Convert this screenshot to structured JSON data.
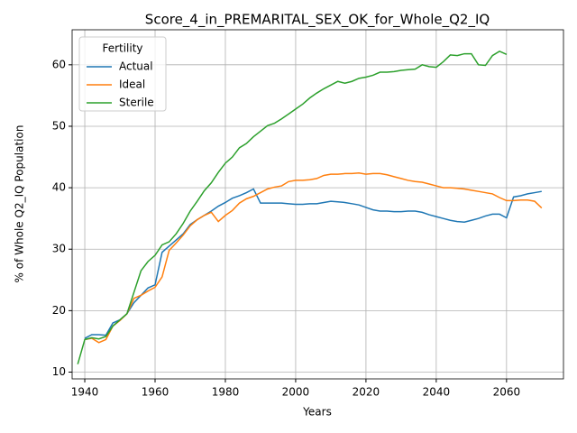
{
  "chart_data": {
    "type": "line",
    "title": "Score_4_in_PREMARITAL_SEX_OK_for_Whole_Q2_IQ",
    "xlabel": "Years",
    "ylabel": "% of Whole Q2_IQ Population",
    "x": [
      1938,
      1940,
      1942,
      1944,
      1946,
      1948,
      1950,
      1952,
      1954,
      1956,
      1958,
      1960,
      1962,
      1964,
      1966,
      1968,
      1970,
      1972,
      1974,
      1976,
      1978,
      1980,
      1982,
      1984,
      1986,
      1988,
      1990,
      1992,
      1994,
      1996,
      1998,
      2000,
      2002,
      2004,
      2006,
      2008,
      2010,
      2012,
      2014,
      2016,
      2018,
      2020,
      2022,
      2024,
      2026,
      2028,
      2030,
      2032,
      2034,
      2036,
      2038,
      2040,
      2042,
      2044,
      2046,
      2048,
      2050,
      2052,
      2054,
      2056,
      2058,
      2060,
      2062,
      2064,
      2066,
      2068,
      2070
    ],
    "series": [
      {
        "name": "Actual",
        "color": "#1f77b4",
        "values": [
          null,
          15.5,
          16.1,
          16.1,
          16.0,
          18.0,
          18.5,
          19.5,
          21.3,
          22.5,
          23.7,
          24.2,
          29.5,
          30.5,
          31.5,
          32.5,
          34.0,
          34.8,
          35.5,
          36.2,
          37.0,
          37.6,
          38.3,
          38.7,
          39.2,
          39.8,
          37.5,
          37.5,
          37.5,
          37.5,
          37.4,
          37.3,
          37.3,
          37.4,
          37.4,
          37.6,
          37.8,
          37.7,
          37.6,
          37.4,
          37.2,
          36.8,
          36.4,
          36.2,
          36.2,
          36.1,
          36.1,
          36.2,
          36.2,
          36.0,
          35.6,
          35.3,
          35.0,
          34.7,
          34.5,
          34.4,
          34.7,
          35.0,
          35.4,
          35.7,
          35.7,
          35.1,
          38.5,
          38.7,
          39.0,
          39.2,
          39.4
        ]
      },
      {
        "name": "Ideal",
        "color": "#ff7f0e",
        "values": [
          null,
          15.3,
          15.5,
          14.8,
          15.3,
          17.5,
          18.4,
          19.5,
          22.0,
          22.5,
          23.2,
          23.8,
          25.5,
          29.8,
          31.0,
          32.3,
          33.8,
          34.8,
          35.5,
          36.0,
          34.5,
          35.5,
          36.3,
          37.5,
          38.2,
          38.6,
          39.2,
          39.8,
          40.1,
          40.3,
          41.0,
          41.2,
          41.2,
          41.3,
          41.5,
          42.0,
          42.2,
          42.2,
          42.3,
          42.3,
          42.4,
          42.2,
          42.3,
          42.3,
          42.1,
          41.8,
          41.5,
          41.2,
          41.0,
          40.9,
          40.6,
          40.3,
          40.0,
          40.0,
          39.9,
          39.8,
          39.6,
          39.4,
          39.2,
          39.0,
          38.4,
          37.9,
          37.9,
          38.0,
          38.0,
          37.8,
          36.7
        ]
      },
      {
        "name": "Sterile",
        "color": "#2ca02c",
        "values": [
          11.3,
          15.3,
          15.6,
          15.4,
          15.8,
          17.5,
          18.5,
          19.5,
          23.0,
          26.5,
          28.0,
          29.0,
          30.7,
          31.2,
          32.5,
          34.2,
          36.2,
          37.8,
          39.5,
          40.8,
          42.5,
          44.0,
          45.0,
          46.5,
          47.2,
          48.3,
          49.2,
          50.1,
          50.5,
          51.2,
          52.0,
          52.8,
          53.6,
          54.6,
          55.4,
          56.1,
          56.7,
          57.3,
          57.0,
          57.3,
          57.8,
          58.0,
          58.3,
          58.8,
          58.8,
          58.9,
          59.1,
          59.2,
          59.3,
          60.0,
          59.7,
          59.6,
          60.5,
          61.6,
          61.5,
          61.8,
          61.8,
          60.0,
          59.9,
          61.5,
          62.2,
          61.7,
          null,
          null,
          null,
          null,
          null
        ]
      }
    ],
    "xlim": [
      1936.4,
      2076.2
    ],
    "ylim": [
      8.9,
      65.7
    ],
    "xticks": [
      1940,
      1960,
      1980,
      2000,
      2020,
      2040,
      2060
    ],
    "yticks": [
      10,
      20,
      30,
      40,
      50,
      60
    ],
    "grid": true,
    "legend_title": "Fertility",
    "legend_loc": "upper left"
  }
}
